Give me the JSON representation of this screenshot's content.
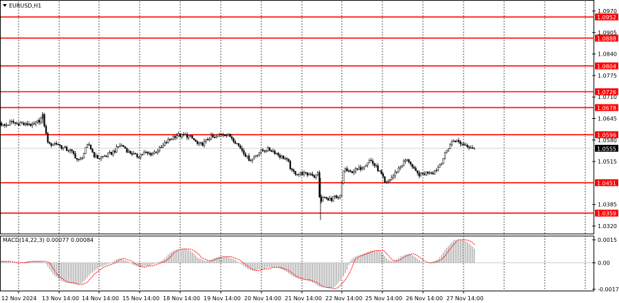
{
  "window": {
    "title": "EURUSD,H1",
    "title_icon": "triangle-down-icon"
  },
  "colors": {
    "background": "#ffffff",
    "candle": "#000000",
    "level_line": "#ff0000",
    "level_label_bg": "#ff0000",
    "level_label_text": "#ffffff",
    "grid": "#000000",
    "histogram": "#a0a0a0",
    "signal_line": "#ff0000",
    "current_price_bg": "#000000",
    "current_price_text": "#ffffff"
  },
  "chart_data": [
    {
      "type": "candlestick",
      "title": "EURUSD,H1",
      "ylim": [
        1.0313,
        1.0996
      ],
      "y_ticks": [
        "1.0970",
        "1.0905",
        "1.0840",
        "1.0775",
        "1.0710",
        "1.0645",
        "1.0580",
        "1.0515",
        "1.0385",
        "1.0320"
      ],
      "x_ticks": [
        "12 Nov 2024",
        "13 Nov 14:00",
        "14 Nov 14:00",
        "15 Nov 14:00",
        "18 Nov 14:00",
        "19 Nov 14:00",
        "20 Nov 14:00",
        "21 Nov 14:00",
        "22 Nov 14:00",
        "25 Nov 14:00",
        "26 Nov 14:00",
        "27 Nov 14:00"
      ],
      "levels": [
        "1.0952",
        "1.0888",
        "1.0804",
        "1.0726",
        "1.0678",
        "1.0596",
        "1.0451",
        "1.0359"
      ],
      "current_price": "1.0555",
      "path_points": [
        [
          0,
          1.0632
        ],
        [
          6,
          1.0622
        ],
        [
          12,
          1.0628
        ],
        [
          18,
          1.0635
        ],
        [
          24,
          1.0628
        ],
        [
          30,
          1.0632
        ],
        [
          36,
          1.0625
        ],
        [
          42,
          1.063
        ],
        [
          48,
          1.0622
        ],
        [
          54,
          1.0635
        ],
        [
          58,
          1.064
        ],
        [
          62,
          1.0652
        ],
        [
          65,
          1.062
        ],
        [
          68,
          1.0585
        ],
        [
          72,
          1.0565
        ],
        [
          78,
          1.057
        ],
        [
          84,
          1.0568
        ],
        [
          90,
          1.0558
        ],
        [
          96,
          1.0552
        ],
        [
          102,
          1.0548
        ],
        [
          108,
          1.0535
        ],
        [
          114,
          1.0515
        ],
        [
          118,
          1.0525
        ],
        [
          122,
          1.054
        ],
        [
          126,
          1.056
        ],
        [
          130,
          1.0565
        ],
        [
          134,
          1.0545
        ],
        [
          138,
          1.053
        ],
        [
          144,
          1.0525
        ],
        [
          150,
          1.053
        ],
        [
          156,
          1.0535
        ],
        [
          162,
          1.054
        ],
        [
          168,
          1.055
        ],
        [
          174,
          1.0565
        ],
        [
          180,
          1.056
        ],
        [
          186,
          1.0545
        ],
        [
          192,
          1.054
        ],
        [
          198,
          1.053
        ],
        [
          204,
          1.0535
        ],
        [
          210,
          1.0542
        ],
        [
          216,
          1.0538
        ],
        [
          222,
          1.054
        ],
        [
          228,
          1.0548
        ],
        [
          234,
          1.0555
        ],
        [
          240,
          1.057
        ],
        [
          246,
          1.058
        ],
        [
          252,
          1.059
        ],
        [
          258,
          1.0596
        ],
        [
          264,
          1.0592
        ],
        [
          270,
          1.0594
        ],
        [
          276,
          1.059
        ],
        [
          282,
          1.058
        ],
        [
          288,
          1.0565
        ],
        [
          294,
          1.0568
        ],
        [
          300,
          1.0578
        ],
        [
          306,
          1.059
        ],
        [
          312,
          1.0585
        ],
        [
          318,
          1.0595
        ],
        [
          324,
          1.06
        ],
        [
          330,
          1.0595
        ],
        [
          336,
          1.059
        ],
        [
          342,
          1.0575
        ],
        [
          348,
          1.056
        ],
        [
          354,
          1.0545
        ],
        [
          360,
          1.0525
        ],
        [
          366,
          1.052
        ],
        [
          372,
          1.0535
        ],
        [
          378,
          1.0545
        ],
        [
          384,
          1.055
        ],
        [
          390,
          1.0552
        ],
        [
          396,
          1.0548
        ],
        [
          402,
          1.054
        ],
        [
          408,
          1.053
        ],
        [
          414,
          1.0525
        ],
        [
          420,
          1.051
        ],
        [
          424,
          1.0485
        ],
        [
          428,
          1.0482
        ],
        [
          434,
          1.0478
        ],
        [
          440,
          1.048
        ],
        [
          446,
          1.0475
        ],
        [
          452,
          1.048
        ],
        [
          458,
          1.0468
        ],
        [
          462,
          1.048
        ],
        [
          464,
          1.042
        ],
        [
          466,
          1.0385
        ],
        [
          470,
          1.041
        ],
        [
          474,
          1.04
        ],
        [
          478,
          1.0405
        ],
        [
          482,
          1.0395
        ],
        [
          486,
          1.041
        ],
        [
          490,
          1.04
        ],
        [
          496,
          1.0412
        ],
        [
          498,
          1.0485
        ],
        [
          502,
          1.0492
        ],
        [
          508,
          1.048
        ],
        [
          514,
          1.0488
        ],
        [
          520,
          1.049
        ],
        [
          526,
          1.0498
        ],
        [
          532,
          1.051
        ],
        [
          538,
          1.052
        ],
        [
          544,
          1.0505
        ],
        [
          550,
          1.049
        ],
        [
          556,
          1.047
        ],
        [
          560,
          1.0445
        ],
        [
          566,
          1.046
        ],
        [
          572,
          1.0472
        ],
        [
          578,
          1.049
        ],
        [
          584,
          1.0505
        ],
        [
          590,
          1.052
        ],
        [
          596,
          1.0515
        ],
        [
          600,
          1.0495
        ],
        [
          606,
          1.0478
        ],
        [
          612,
          1.0475
        ],
        [
          618,
          1.048
        ],
        [
          624,
          1.0485
        ],
        [
          630,
          1.0482
        ],
        [
          636,
          1.0495
        ],
        [
          642,
          1.0515
        ],
        [
          648,
          1.054
        ],
        [
          654,
          1.0565
        ],
        [
          660,
          1.058
        ],
        [
          666,
          1.0575
        ],
        [
          672,
          1.0568
        ],
        [
          678,
          1.0565
        ],
        [
          684,
          1.056
        ],
        [
          690,
          1.0555
        ]
      ]
    },
    {
      "type": "histogram",
      "title": "MACD(14,22,3) 0.00077 0.00084",
      "ylim": [
        -0.00172,
        0.0015
      ],
      "y_ticks": [
        "0.0015",
        "0.00",
        "-0.00172"
      ],
      "path_points": [
        [
          0,
          0.0001
        ],
        [
          10,
          0.0001
        ],
        [
          20,
          0.0
        ],
        [
          30,
          0.0
        ],
        [
          40,
          0.0001
        ],
        [
          50,
          0.0001
        ],
        [
          60,
          0.0001
        ],
        [
          66,
          0.0
        ],
        [
          72,
          -0.0004
        ],
        [
          78,
          -0.0008
        ],
        [
          84,
          -0.001
        ],
        [
          90,
          -0.0012
        ],
        [
          96,
          -0.0013
        ],
        [
          102,
          -0.0013
        ],
        [
          108,
          -0.0014
        ],
        [
          114,
          -0.0014
        ],
        [
          120,
          -0.0013
        ],
        [
          126,
          -0.001
        ],
        [
          132,
          -0.0007
        ],
        [
          138,
          -0.0005
        ],
        [
          144,
          -0.0003
        ],
        [
          150,
          -0.0002
        ],
        [
          156,
          -0.0001
        ],
        [
          162,
          0.0
        ],
        [
          168,
          0.0002
        ],
        [
          174,
          0.0003
        ],
        [
          180,
          0.0002
        ],
        [
          186,
          0.0001
        ],
        [
          192,
          -0.0001
        ],
        [
          198,
          -0.0002
        ],
        [
          204,
          -0.0003
        ],
        [
          210,
          -0.0002
        ],
        [
          216,
          -0.0002
        ],
        [
          222,
          -0.0001
        ],
        [
          228,
          0.0
        ],
        [
          234,
          0.0001
        ],
        [
          240,
          0.0003
        ],
        [
          246,
          0.0006
        ],
        [
          252,
          0.0008
        ],
        [
          258,
          0.0009
        ],
        [
          264,
          0.0009
        ],
        [
          270,
          0.0009
        ],
        [
          276,
          0.0008
        ],
        [
          282,
          0.0006
        ],
        [
          288,
          0.0003
        ],
        [
          294,
          0.0002
        ],
        [
          300,
          0.0001
        ],
        [
          306,
          0.0002
        ],
        [
          312,
          0.0003
        ],
        [
          318,
          0.0004
        ],
        [
          324,
          0.0004
        ],
        [
          330,
          0.0004
        ],
        [
          336,
          0.0003
        ],
        [
          342,
          0.0002
        ],
        [
          348,
          0.0
        ],
        [
          354,
          -0.0002
        ],
        [
          360,
          -0.0004
        ],
        [
          366,
          -0.0005
        ],
        [
          372,
          -0.0005
        ],
        [
          378,
          -0.0004
        ],
        [
          384,
          -0.0004
        ],
        [
          390,
          -0.0003
        ],
        [
          396,
          -0.0003
        ],
        [
          402,
          -0.0003
        ],
        [
          408,
          -0.0004
        ],
        [
          414,
          -0.0005
        ],
        [
          420,
          -0.0007
        ],
        [
          426,
          -0.0009
        ],
        [
          432,
          -0.001
        ],
        [
          438,
          -0.0011
        ],
        [
          444,
          -0.0011
        ],
        [
          450,
          -0.0012
        ],
        [
          456,
          -0.0013
        ],
        [
          462,
          -0.0015
        ],
        [
          468,
          -0.0016
        ],
        [
          474,
          -0.0016
        ],
        [
          480,
          -0.0017
        ],
        [
          486,
          -0.0016
        ],
        [
          492,
          -0.0013
        ],
        [
          498,
          -0.001
        ],
        [
          504,
          -0.0005
        ],
        [
          510,
          0.0002
        ],
        [
          516,
          0.0004
        ],
        [
          522,
          0.0005
        ],
        [
          528,
          0.0006
        ],
        [
          534,
          0.0007
        ],
        [
          540,
          0.0008
        ],
        [
          546,
          0.0008
        ],
        [
          552,
          0.0008
        ],
        [
          558,
          0.0005
        ],
        [
          564,
          0.0002
        ],
        [
          570,
          0.0001
        ],
        [
          576,
          0.0002
        ],
        [
          582,
          0.0004
        ],
        [
          588,
          0.0005
        ],
        [
          594,
          0.0006
        ],
        [
          600,
          0.0005
        ],
        [
          606,
          0.0003
        ],
        [
          612,
          0.0001
        ],
        [
          618,
          0.0
        ],
        [
          624,
          0.0
        ],
        [
          630,
          0.0001
        ],
        [
          636,
          0.0002
        ],
        [
          642,
          0.0005
        ],
        [
          648,
          0.0009
        ],
        [
          654,
          0.0012
        ],
        [
          660,
          0.0015
        ],
        [
          666,
          0.0015
        ],
        [
          672,
          0.0015
        ],
        [
          678,
          0.0014
        ],
        [
          684,
          0.0012
        ],
        [
          690,
          0.0009
        ]
      ]
    }
  ]
}
